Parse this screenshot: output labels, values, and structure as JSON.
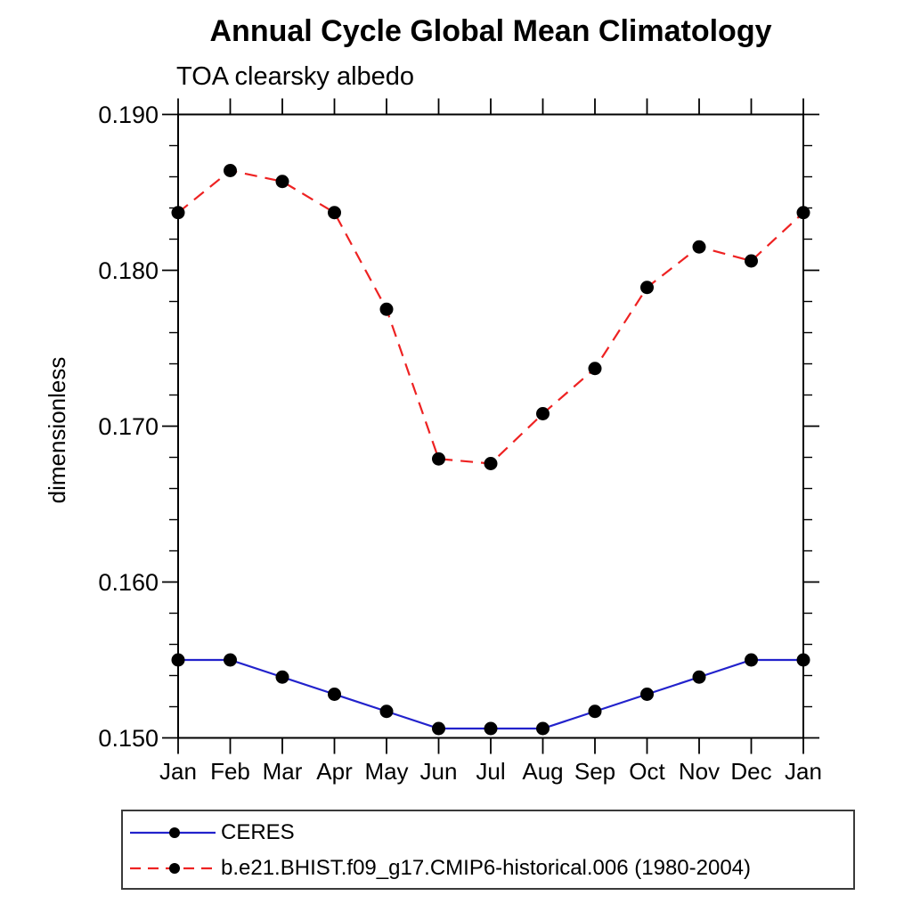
{
  "page": {
    "background": "#ffffff",
    "text_color": "#000000"
  },
  "chart_data": {
    "type": "line",
    "title": "Annual Cycle Global Mean Climatology",
    "subtitle": "TOA clearsky albedo",
    "xlabel": "",
    "ylabel": "dimensionless",
    "x_categories": [
      "Jan",
      "Feb",
      "Mar",
      "Apr",
      "May",
      "Jun",
      "Jul",
      "Aug",
      "Sep",
      "Oct",
      "Nov",
      "Dec",
      "Jan"
    ],
    "ylim": [
      0.15,
      0.19
    ],
    "ytick_major_step": 0.01,
    "ytick_minor_step": 0.002,
    "ytick_labels": [
      "0.190",
      "0.180",
      "0.170",
      "0.160",
      "0.150"
    ],
    "grid": false,
    "frame": "box-with-outward-ticks",
    "marker": "filled-black-circle",
    "marker_color": "#000000",
    "legend_position": "below-plot-boxed",
    "series": [
      {
        "name": "CERES",
        "color": "#2222cc",
        "line_style": "solid",
        "values": [
          0.155,
          0.155,
          0.1539,
          0.1528,
          0.1517,
          0.1506,
          0.1506,
          0.1506,
          0.1517,
          0.1528,
          0.1539,
          0.155,
          0.155
        ]
      },
      {
        "name": "b.e21.BHIST.f09_g17.CMIP6-historical.006 (1980-2004)",
        "color": "#ee2222",
        "line_style": "dashed",
        "values": [
          0.1837,
          0.1864,
          0.1857,
          0.1837,
          0.1775,
          0.1679,
          0.1676,
          0.1708,
          0.1737,
          0.1789,
          0.1815,
          0.1806,
          0.1837
        ]
      }
    ]
  }
}
